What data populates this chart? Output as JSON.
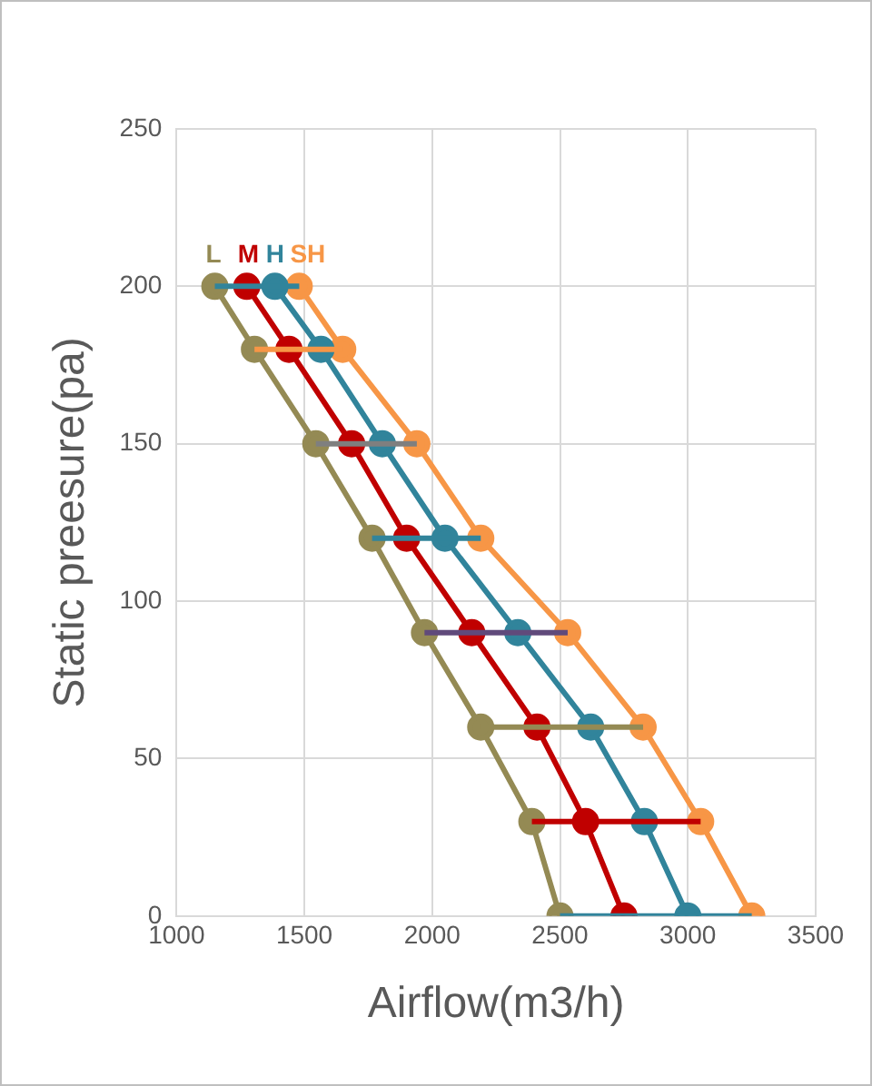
{
  "chart_data": {
    "type": "line",
    "xlabel": "Airflow(m3/h)",
    "ylabel": "Static preesure(pa)",
    "xlim": [
      1000,
      3500
    ],
    "xticks": [
      1000,
      1500,
      2000,
      2500,
      3000,
      3500
    ],
    "ylim": [
      0,
      250
    ],
    "yticks": [
      0,
      50,
      100,
      150,
      200,
      250
    ],
    "grid": true,
    "legend": false,
    "marker": "circle",
    "line_style": "solid",
    "series": [
      {
        "color": "#31849b",
        "x": [
          1150,
          1275,
          1385,
          1480
        ],
        "values": [
          200,
          200,
          200,
          200
        ],
        "marker": "none"
      },
      {
        "color": "#f79646",
        "x": [
          1305,
          1440,
          1565,
          1650
        ],
        "values": [
          180,
          180,
          180,
          180
        ],
        "marker": "none"
      },
      {
        "color": "#7f7f7f",
        "x": [
          1545,
          1685,
          1805,
          1940
        ],
        "values": [
          150,
          150,
          150,
          150
        ],
        "marker": "none"
      },
      {
        "color": "#31849b",
        "x": [
          1765,
          1900,
          2050,
          2190
        ],
        "values": [
          120,
          120,
          120,
          120
        ],
        "marker": "none"
      },
      {
        "color": "#604a7b",
        "x": [
          1970,
          2155,
          2335,
          2530
        ],
        "values": [
          90,
          90,
          90,
          90
        ],
        "marker": "none"
      },
      {
        "color": "#948a54",
        "x": [
          2190,
          2410,
          2620,
          2825
        ],
        "values": [
          60,
          60,
          60,
          60
        ],
        "marker": "none"
      },
      {
        "color": "#c00000",
        "x": [
          2390,
          2600,
          2830,
          3050
        ],
        "values": [
          30,
          30,
          30,
          30
        ],
        "marker": "none"
      },
      {
        "color": "#31849b",
        "x": [
          2500,
          2750,
          3000,
          3250
        ],
        "values": [
          0,
          0,
          0,
          0
        ],
        "marker": "none"
      },
      {
        "name": "L",
        "color": "#948a54",
        "x": [
          1150,
          1305,
          1545,
          1765,
          1970,
          2190,
          2390,
          2500
        ],
        "values": [
          200,
          180,
          150,
          120,
          90,
          60,
          30,
          0
        ]
      },
      {
        "name": "M",
        "color": "#c00000",
        "x": [
          1275,
          1440,
          1685,
          1900,
          2155,
          2410,
          2600,
          2750
        ],
        "values": [
          200,
          180,
          150,
          120,
          90,
          60,
          30,
          0
        ]
      },
      {
        "name": "H",
        "color": "#31849b",
        "x": [
          1385,
          1565,
          1805,
          2050,
          2335,
          2620,
          2830,
          3000
        ],
        "values": [
          200,
          180,
          150,
          120,
          90,
          60,
          30,
          0
        ]
      },
      {
        "name": "SH",
        "color": "#f79646",
        "x": [
          1480,
          1650,
          1940,
          2190,
          2530,
          2825,
          3050,
          3250
        ],
        "values": [
          200,
          180,
          150,
          120,
          90,
          60,
          30,
          0
        ]
      }
    ]
  }
}
